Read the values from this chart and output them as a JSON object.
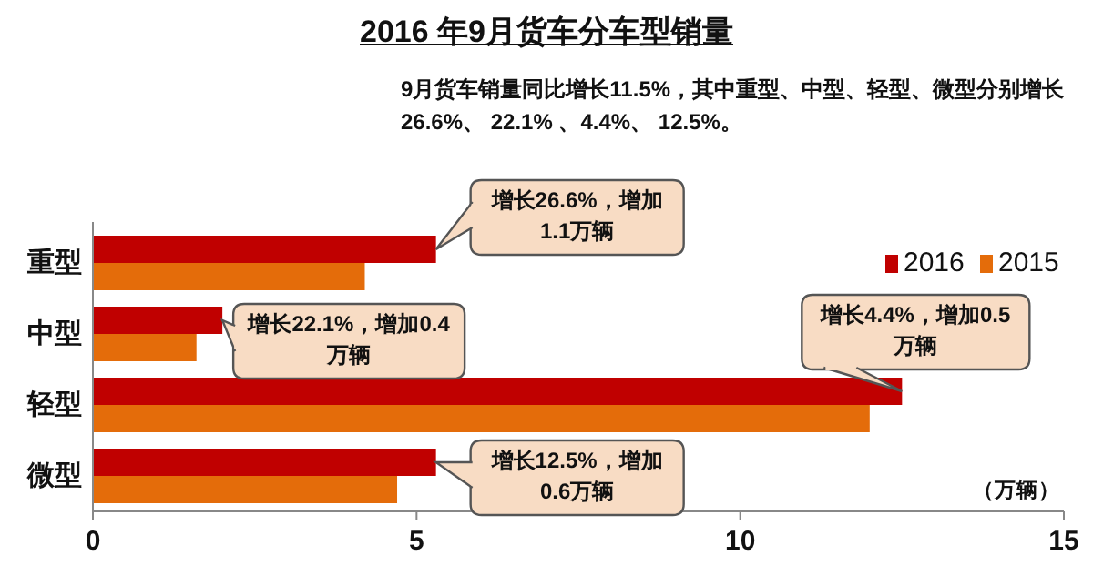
{
  "chart_data": {
    "type": "bar",
    "orientation": "horizontal",
    "title": "2016 年9月货车分车型销量",
    "subtitle": "9月货车销量同比增长11.5%，其中重型、中型、轻型、微型分别增长26.6%、 22.1% 、4.4%、 12.5%。",
    "xlabel": "（万辆）",
    "categories": [
      "重型",
      "中型",
      "轻型",
      "微型"
    ],
    "series": [
      {
        "name": "2016",
        "color": "#c00000",
        "values": [
          5.3,
          2.0,
          12.5,
          5.3
        ]
      },
      {
        "name": "2015",
        "color": "#e46c0a",
        "values": [
          4.2,
          1.6,
          12.0,
          4.7
        ]
      }
    ],
    "xlim": [
      0,
      15
    ],
    "xticks": [
      0,
      5,
      10,
      15
    ],
    "legend": "top right",
    "annotations": [
      {
        "text": "增长26.6%，增加1.1万辆",
        "x": 5.3,
        "y": "重型"
      },
      {
        "text": "增长22.1%，增加0.4万辆",
        "x": 2.0,
        "y": "中型"
      },
      {
        "text": "增长4.4%，增加0.5万辆",
        "x": 12.5,
        "y": "轻型"
      },
      {
        "text": "增长12.5%，增加0.6万辆",
        "x": 5.3,
        "y": "微型"
      }
    ]
  }
}
